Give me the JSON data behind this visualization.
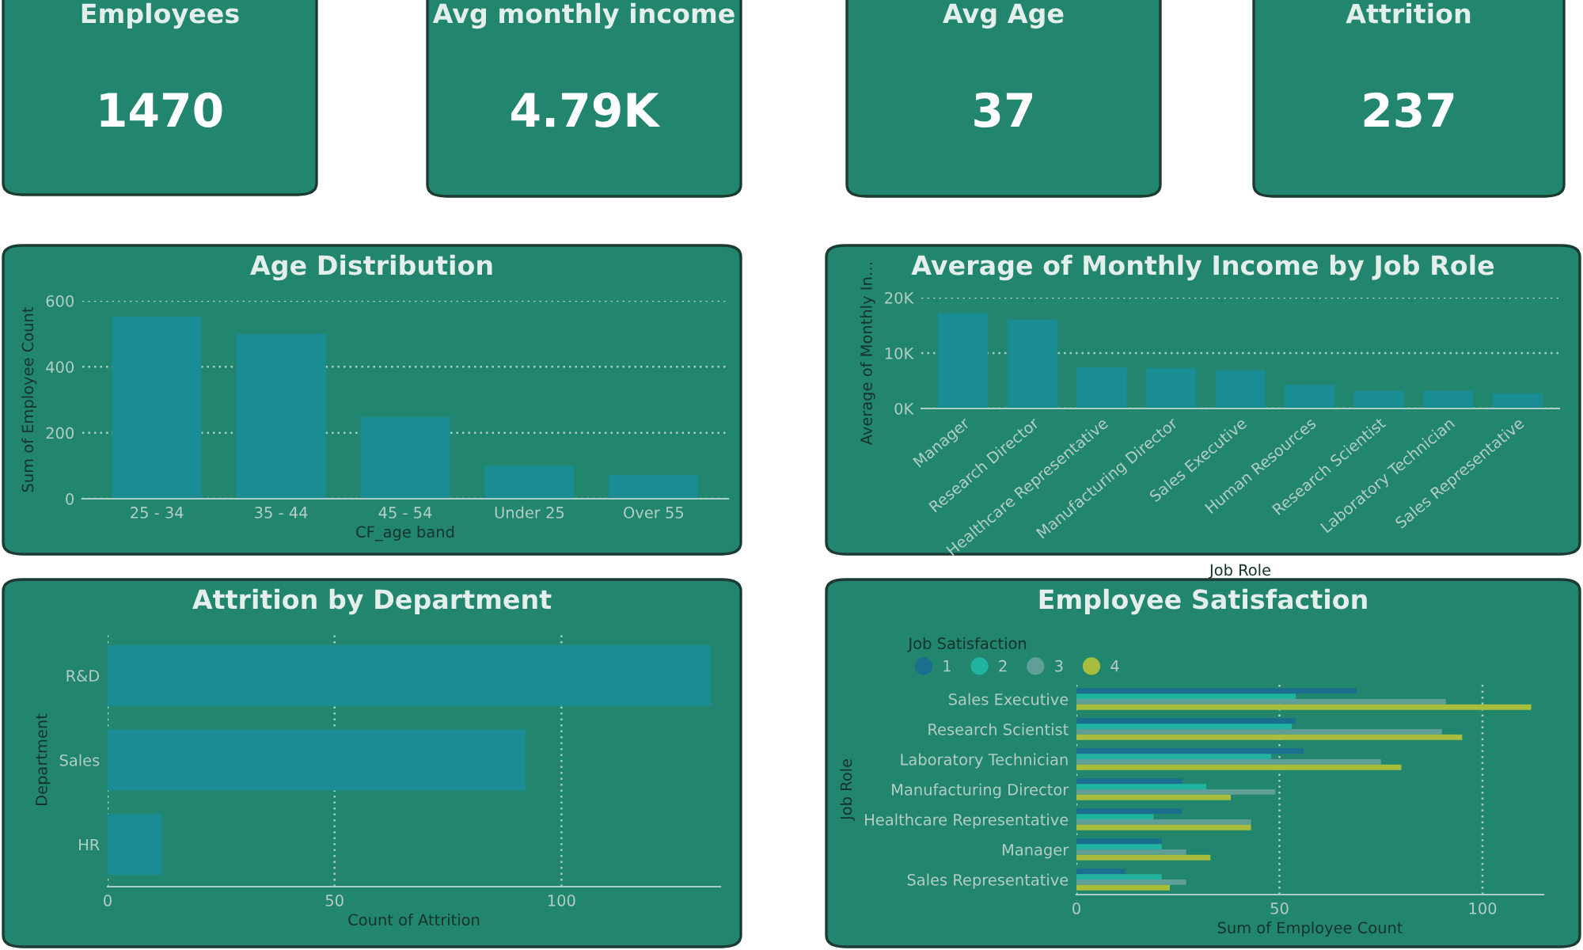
{
  "chart_data": [
    {
      "type": "other",
      "title": "Employees",
      "annotations": [
        "1470"
      ]
    },
    {
      "type": "other",
      "title": "Avg monthly income",
      "annotations": [
        "4.79K"
      ]
    },
    {
      "type": "other",
      "title": "Avg Age",
      "annotations": [
        "37"
      ]
    },
    {
      "type": "other",
      "title": "Attrition",
      "annotations": [
        "237"
      ]
    },
    {
      "type": "bar",
      "title": "Age Distribution",
      "xlabel": "CF_age band",
      "ylabel": "Sum of Employee Count",
      "categories": [
        "25 - 34",
        "35 - 44",
        "45 - 54",
        "Under 25",
        "Over 55"
      ],
      "values": [
        552,
        500,
        247,
        99,
        72
      ],
      "color": "#1a8c94",
      "ylim": [
        0,
        600
      ],
      "yticks": [
        0,
        200,
        400,
        600
      ],
      "grid": "y"
    },
    {
      "type": "bar",
      "title": "Average of Monthly Income by Job Role",
      "xlabel": "Job Role",
      "ylabel": "Average of Monthly In…",
      "categories": [
        "Manager",
        "Research Director",
        "Healthcare Representative",
        "Manufacturing Director",
        "Sales Executive",
        "Human Resources",
        "Research Scientist",
        "Laboratory Technician",
        "Sales Representative"
      ],
      "values": [
        17200,
        16000,
        7400,
        7300,
        6900,
        4300,
        3200,
        3200,
        2700
      ],
      "color": "#1a8c94",
      "ylim": [
        0,
        20000
      ],
      "yticks": [
        {
          "value": 0,
          "label": "0K"
        },
        {
          "value": 10000,
          "label": "10K"
        },
        {
          "value": 20000,
          "label": "20K"
        }
      ],
      "grid": "y"
    },
    {
      "type": "bar",
      "orientation": "horizontal",
      "title": "Attrition by Department",
      "xlabel": "Count of Attrition",
      "ylabel": "Department",
      "categories": [
        "R&D",
        "Sales",
        "HR"
      ],
      "values": [
        133,
        92,
        12
      ],
      "color": "#1a8c94",
      "xlim": [
        0,
        135
      ],
      "xticks": [
        0,
        50,
        100
      ],
      "grid": "x"
    },
    {
      "type": "bar",
      "orientation": "horizontal",
      "title": "Employee Satisfaction",
      "xlabel": "Sum of Employee Count",
      "ylabel": "Job Role",
      "legend_title": "Job Satisfaction",
      "legend": "top left",
      "categories": [
        "Sales Executive",
        "Research Scientist",
        "Laboratory Technician",
        "Manufacturing Director",
        "Healthcare Representative",
        "Manager",
        "Sales Representative"
      ],
      "series": [
        {
          "name": "1",
          "color": "#1b6f8e",
          "values": [
            69,
            54,
            56,
            26,
            26,
            21,
            12
          ]
        },
        {
          "name": "2",
          "color": "#20b3a0",
          "values": [
            54,
            53,
            48,
            32,
            19,
            21,
            21
          ]
        },
        {
          "name": "3",
          "color": "#5f9f97",
          "values": [
            91,
            90,
            75,
            49,
            43,
            27,
            27
          ]
        },
        {
          "name": "4",
          "color": "#a9bd3c",
          "values": [
            112,
            95,
            80,
            38,
            43,
            33,
            23
          ]
        }
      ],
      "xlim": [
        0,
        115
      ],
      "xticks": [
        0,
        50,
        100
      ],
      "grid": "x"
    }
  ]
}
